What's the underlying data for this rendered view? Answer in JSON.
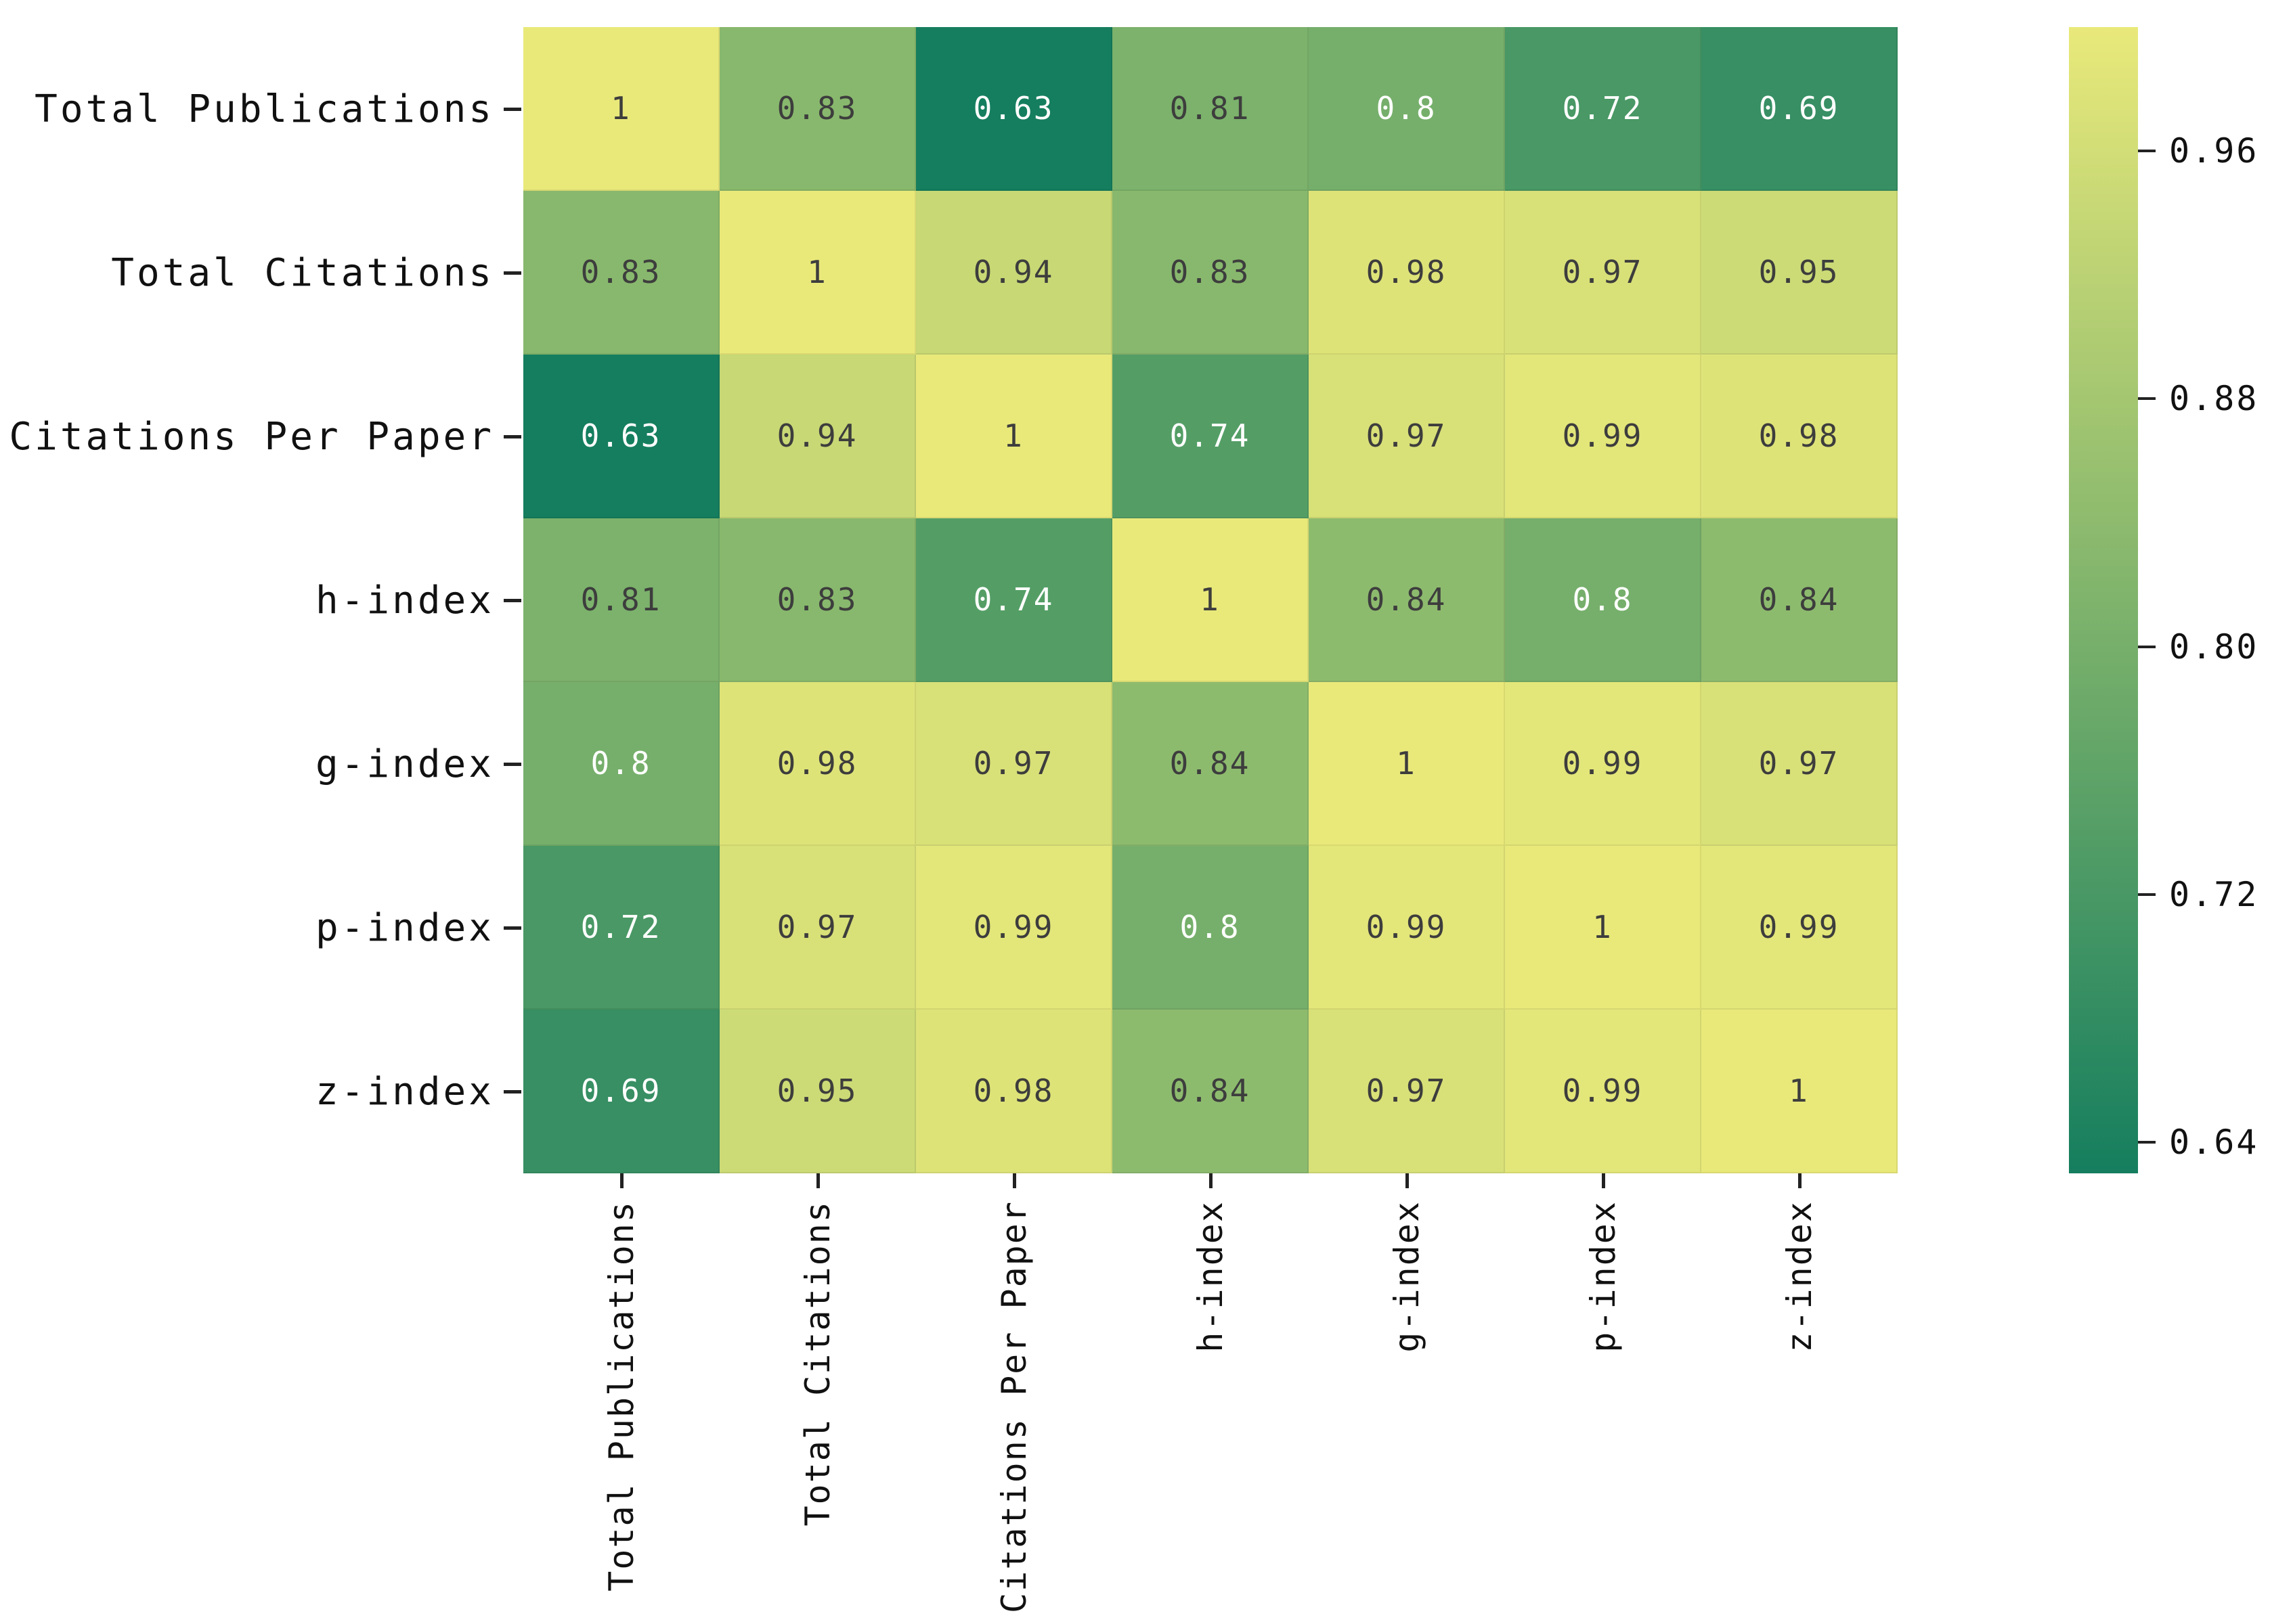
{
  "figure": {
    "background": "#ffffff",
    "kind": "correlation-heatmap"
  },
  "chart_data": {
    "type": "heatmap",
    "categories": [
      "Total Publications",
      "Total Citations",
      "Citations Per Paper",
      "h-index",
      "g-index",
      "p-index",
      "z-index"
    ],
    "x_tick_labels": [
      "Total Publications",
      "Total Citations",
      "Citations Per Paper",
      "h-index",
      "g-index",
      "p-index",
      "z-index"
    ],
    "y_tick_labels": [
      "Total Publications",
      "Total Citations",
      "Citations Per Paper",
      "h-index",
      "g-index",
      "p-index",
      "z-index"
    ],
    "matrix": [
      [
        1,
        0.83,
        0.63,
        0.81,
        0.8,
        0.72,
        0.69
      ],
      [
        0.83,
        1,
        0.94,
        0.83,
        0.98,
        0.97,
        0.95
      ],
      [
        0.63,
        0.94,
        1,
        0.74,
        0.97,
        0.99,
        0.98
      ],
      [
        0.81,
        0.83,
        0.74,
        1,
        0.84,
        0.8,
        0.84
      ],
      [
        0.8,
        0.98,
        0.97,
        0.84,
        1,
        0.99,
        0.97
      ],
      [
        0.72,
        0.97,
        0.99,
        0.8,
        0.99,
        1,
        0.99
      ],
      [
        0.69,
        0.95,
        0.98,
        0.84,
        0.97,
        0.99,
        1
      ]
    ],
    "vmin": 0.63,
    "vmax": 1.0,
    "colorbar": {
      "position": "right",
      "tick_values": [
        0.96,
        0.88,
        0.8,
        0.72,
        0.64
      ],
      "tick_labels": [
        "0.96",
        "0.88",
        "0.80",
        "0.72",
        "0.64"
      ]
    },
    "colors": {
      "cmap_low": "#157e5e",
      "cmap_high": "#e9e97a",
      "cmap_low_rgb": [
        21,
        126,
        94
      ],
      "cmap_high_rgb": [
        233,
        233,
        122
      ],
      "annotation_dark": "#3d3d3d",
      "annotation_light": "#ffffff",
      "tick_mark_color": "#222222",
      "axis_label_color": "#111111"
    },
    "annotation_light_text_below": 0.805,
    "grid_on": false,
    "title": "",
    "xlabel": "",
    "ylabel": ""
  }
}
